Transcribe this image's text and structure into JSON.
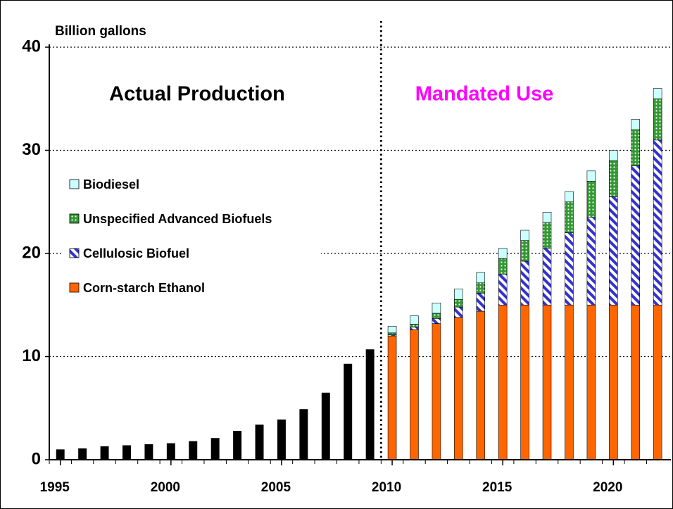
{
  "chart_data": {
    "type": "bar",
    "stacked": true,
    "y_label": "Billion gallons",
    "annotations": [
      {
        "text": "Actual Production",
        "color": "#000000"
      },
      {
        "text": "Mandated  Use",
        "color": "#ff00ff"
      }
    ],
    "x": [
      1995,
      1996,
      1997,
      1998,
      1999,
      2000,
      2001,
      2002,
      2003,
      2004,
      2005,
      2006,
      2007,
      2008,
      2009,
      2010,
      2011,
      2012,
      2013,
      2014,
      2015,
      2016,
      2017,
      2018,
      2019,
      2020,
      2021,
      2022
    ],
    "xlim": [
      1994.5,
      2022.6
    ],
    "xticks": [
      1995,
      2000,
      2005,
      2010,
      2015,
      2020
    ],
    "ylim": [
      0,
      40
    ],
    "yticks": [
      0,
      10,
      20,
      30,
      40
    ],
    "grid": true,
    "legend": "upper left",
    "series": [
      {
        "name": "Biodiesel",
        "color": "#ccffff",
        "pattern": "solid",
        "values": [
          null,
          null,
          null,
          null,
          null,
          null,
          null,
          null,
          null,
          null,
          null,
          null,
          null,
          null,
          null,
          0.65,
          0.8,
          1.0,
          1.0,
          1.0,
          1.0,
          1.0,
          1.0,
          1.0,
          1.0,
          1.0,
          1.0,
          1.0
        ]
      },
      {
        "name": "Unspecified Advanced Biofuels",
        "color": "#339933",
        "pattern": "dots",
        "values": [
          null,
          null,
          null,
          null,
          null,
          null,
          null,
          null,
          null,
          null,
          null,
          null,
          null,
          null,
          null,
          0.2,
          0.3,
          0.5,
          0.75,
          1.0,
          1.5,
          2.0,
          2.5,
          3.0,
          3.5,
          3.5,
          3.5,
          4.0
        ]
      },
      {
        "name": "Cellulosic Biofuel",
        "color": "#3333cc",
        "pattern": "stripes",
        "values": [
          null,
          null,
          null,
          null,
          null,
          null,
          null,
          null,
          null,
          null,
          null,
          null,
          null,
          null,
          null,
          0.1,
          0.25,
          0.5,
          1.0,
          1.75,
          3.0,
          4.25,
          5.5,
          7.0,
          8.5,
          10.5,
          13.5,
          16.0
        ]
      },
      {
        "name": "Corn-starch Ethanol",
        "color": "#ff6600",
        "pattern": "solid",
        "values": [
          null,
          null,
          null,
          null,
          null,
          null,
          null,
          null,
          null,
          null,
          null,
          null,
          null,
          null,
          null,
          12.0,
          12.6,
          13.2,
          13.8,
          14.4,
          15.0,
          15.0,
          15.0,
          15.0,
          15.0,
          15.0,
          15.0,
          15.0
        ]
      },
      {
        "color": "#000000",
        "pattern": "solid",
        "values": [
          1.0,
          1.1,
          1.3,
          1.4,
          1.5,
          1.6,
          1.8,
          2.1,
          2.8,
          3.4,
          3.9,
          4.9,
          6.5,
          9.3,
          10.7,
          null,
          null,
          null,
          null,
          null,
          null,
          null,
          null,
          null,
          null,
          null,
          null,
          null
        ]
      }
    ]
  }
}
